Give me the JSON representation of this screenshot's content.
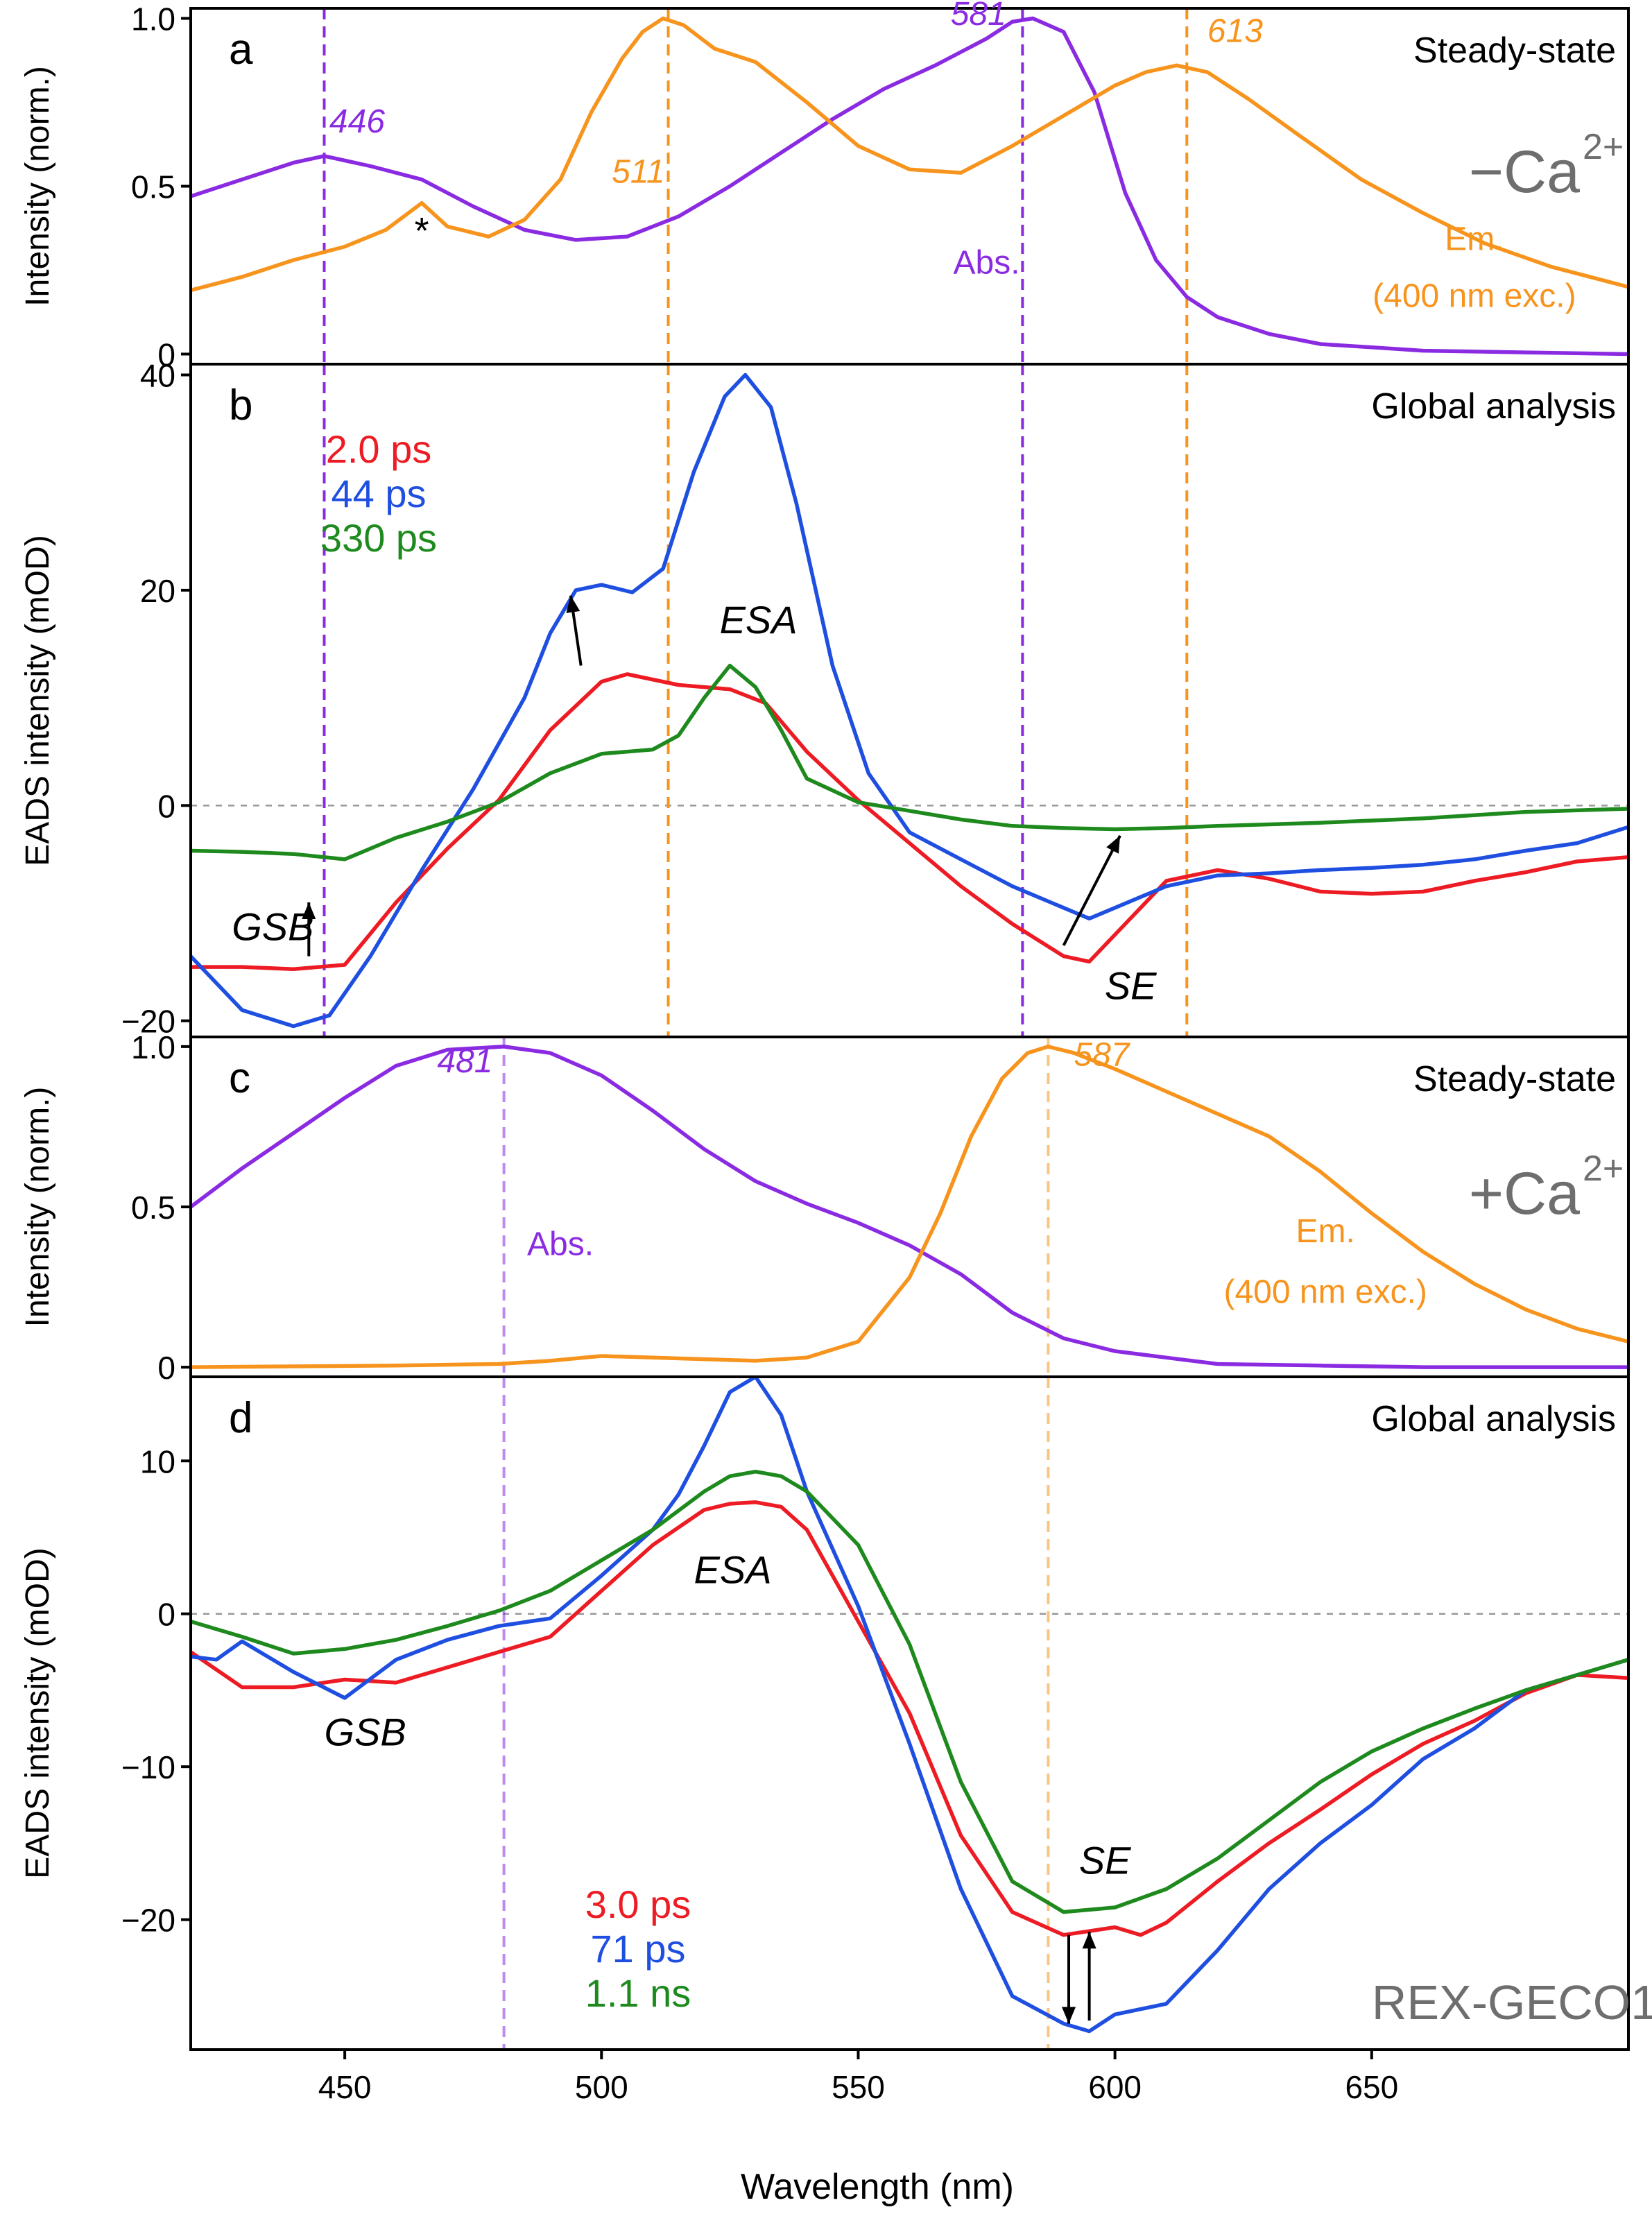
{
  "figure": {
    "xlabel": "Wavelength (nm)",
    "xlim": [
      420,
      700
    ],
    "x_ticks": [
      450,
      500,
      550,
      600,
      650
    ]
  },
  "colors": {
    "purple": "#8A2BE2",
    "orange": "#F7941D",
    "red": "#ED1C24",
    "blue": "#1F4FE0",
    "green": "#1E8A1E",
    "black": "#000000",
    "gray": "#6E6E6E"
  },
  "chart_data": [
    {
      "panel": "a",
      "type": "line",
      "title": "Steady-state",
      "condition": "−Ca",
      "condition_sup": "2+",
      "ylabel": "Intensity (norm.)",
      "ylim": [
        -0.03,
        1.03
      ],
      "y_ticks": [
        {
          "v": 1.0,
          "label": "1.0"
        },
        {
          "v": 0.5,
          "label": "0.5"
        },
        {
          "v": 0,
          "label": "0"
        }
      ],
      "vlines": [
        {
          "x": 446,
          "color": "purple"
        },
        {
          "x": 513,
          "color": "orange"
        },
        {
          "x": 582,
          "color": "purple"
        },
        {
          "x": 614,
          "color": "orange"
        }
      ],
      "peak_labels": [
        {
          "text": "446",
          "x": 447,
          "y": 0.66,
          "color": "purple"
        },
        {
          "text": "511",
          "x": 502,
          "y": 0.51,
          "color": "orange"
        },
        {
          "text": "581",
          "x": 568,
          "y": 0.98,
          "color": "purple"
        },
        {
          "text": "613",
          "x": 618,
          "y": 0.93,
          "color": "orange"
        }
      ],
      "labels": [
        {
          "text": "Abs.",
          "x": 575,
          "y": 0.24,
          "color": "purple"
        },
        {
          "text": "Em.",
          "x": 670,
          "y": 0.31,
          "color": "orange"
        },
        {
          "text": "(400 nm exc.)",
          "x": 670,
          "y": 0.14,
          "color": "orange"
        },
        {
          "text": "*",
          "x": 465,
          "y": 0.33,
          "color": "black"
        }
      ],
      "series": [
        {
          "name": "Abs.",
          "color": "purple",
          "x": [
            420,
            430,
            440,
            446,
            455,
            465,
            475,
            485,
            495,
            505,
            515,
            525,
            535,
            545,
            555,
            565,
            575,
            580,
            584,
            590,
            596,
            602,
            608,
            614,
            620,
            630,
            640,
            650,
            660,
            680,
            700
          ],
          "y": [
            0.47,
            0.52,
            0.57,
            0.59,
            0.56,
            0.52,
            0.44,
            0.37,
            0.34,
            0.35,
            0.41,
            0.5,
            0.6,
            0.7,
            0.79,
            0.86,
            0.94,
            0.99,
            1.0,
            0.96,
            0.78,
            0.48,
            0.28,
            0.17,
            0.11,
            0.06,
            0.03,
            0.02,
            0.01,
            0.005,
            0.0
          ]
        },
        {
          "name": "Em. (400 nm exc.)",
          "color": "orange",
          "x": [
            420,
            430,
            440,
            450,
            458,
            465,
            470,
            478,
            485,
            492,
            498,
            504,
            508,
            512,
            516,
            522,
            530,
            540,
            550,
            560,
            570,
            580,
            590,
            600,
            606,
            612,
            618,
            626,
            636,
            648,
            660,
            672,
            685,
            700
          ],
          "y": [
            0.19,
            0.23,
            0.28,
            0.32,
            0.37,
            0.45,
            0.38,
            0.35,
            0.4,
            0.52,
            0.72,
            0.88,
            0.96,
            1.0,
            0.98,
            0.91,
            0.87,
            0.75,
            0.62,
            0.55,
            0.54,
            0.62,
            0.71,
            0.8,
            0.84,
            0.86,
            0.84,
            0.76,
            0.65,
            0.52,
            0.42,
            0.33,
            0.26,
            0.2
          ]
        }
      ]
    },
    {
      "panel": "b",
      "type": "line",
      "title": "Global analysis",
      "ylabel": "EADS intensity (mOD)",
      "ylim": [
        -21.5,
        41
      ],
      "y_ticks": [
        {
          "v": 40,
          "label": "40"
        },
        {
          "v": 20,
          "label": "20"
        },
        {
          "v": 0,
          "label": "0"
        },
        {
          "v": -20,
          "label": "−20"
        }
      ],
      "vlines": [
        {
          "x": 446,
          "color": "purple"
        },
        {
          "x": 513,
          "color": "orange"
        },
        {
          "x": 582,
          "color": "purple"
        },
        {
          "x": 614,
          "color": "orange"
        }
      ],
      "legend": [
        {
          "text": "2.0 ps",
          "color": "red"
        },
        {
          "text": "44 ps",
          "color": "blue"
        },
        {
          "text": "330 ps",
          "color": "green"
        }
      ],
      "labels": [
        {
          "text": "ESA",
          "x": 523,
          "y": 16
        },
        {
          "text": "GSB",
          "x": 428,
          "y": -12.5
        },
        {
          "text": "SE",
          "x": 598,
          "y": -18
        }
      ],
      "arrows": [
        {
          "x1": 496,
          "y1": 13,
          "x2": 494,
          "y2": 19.5
        },
        {
          "x1": 590,
          "y1": -13,
          "x2": 601,
          "y2": -2.8
        },
        {
          "x1": 443,
          "y1": -14,
          "x2": 443,
          "y2": -9
        }
      ],
      "series": [
        {
          "name": "2.0 ps",
          "color": "red",
          "x": [
            420,
            430,
            440,
            450,
            460,
            470,
            480,
            490,
            500,
            505,
            515,
            525,
            532,
            540,
            550,
            560,
            570,
            580,
            590,
            595,
            602,
            610,
            620,
            630,
            640,
            650,
            660,
            670,
            680,
            690,
            700
          ],
          "y": [
            -15,
            -15,
            -15.2,
            -14.8,
            -9,
            -4,
            0.5,
            7,
            11.5,
            12.2,
            11.2,
            10.8,
            9.5,
            5,
            0.5,
            -3.5,
            -7.5,
            -11,
            -14,
            -14.5,
            -11,
            -7,
            -6,
            -6.8,
            -8,
            -8.2,
            -8,
            -7,
            -6.2,
            -5.2,
            -4.8
          ]
        },
        {
          "name": "44 ps",
          "color": "blue",
          "x": [
            420,
            430,
            440,
            447,
            455,
            465,
            475,
            485,
            490,
            495,
            500,
            506,
            512,
            518,
            524,
            528,
            533,
            538,
            545,
            552,
            560,
            570,
            580,
            590,
            595,
            600,
            610,
            620,
            630,
            640,
            650,
            660,
            670,
            680,
            690,
            700
          ],
          "y": [
            -14,
            -19,
            -20.5,
            -19.5,
            -14,
            -6,
            1.5,
            10,
            16,
            20,
            20.5,
            19.8,
            22,
            31,
            38,
            40,
            37,
            28,
            13,
            3,
            -2.5,
            -5,
            -7.5,
            -9.5,
            -10.5,
            -9.5,
            -7.5,
            -6.5,
            -6.3,
            -6,
            -5.8,
            -5.5,
            -5,
            -4.2,
            -3.5,
            -2
          ]
        },
        {
          "name": "330 ps",
          "color": "green",
          "x": [
            420,
            430,
            440,
            450,
            460,
            470,
            480,
            490,
            500,
            510,
            515,
            520,
            525,
            530,
            535,
            540,
            550,
            560,
            570,
            580,
            590,
            600,
            610,
            620,
            640,
            660,
            680,
            700
          ],
          "y": [
            -4.2,
            -4.3,
            -4.5,
            -5,
            -3,
            -1.5,
            0.3,
            3,
            4.8,
            5.2,
            6.5,
            10,
            13,
            11,
            7,
            2.5,
            0.3,
            -0.5,
            -1.3,
            -1.9,
            -2.1,
            -2.2,
            -2.1,
            -1.9,
            -1.6,
            -1.2,
            -0.6,
            -0.3
          ]
        }
      ]
    },
    {
      "panel": "c",
      "type": "line",
      "title": "Steady-state",
      "condition": "+Ca",
      "condition_sup": "2+",
      "ylabel": "Intensity (norm.)",
      "ylim": [
        -0.03,
        1.03
      ],
      "y_ticks": [
        {
          "v": 1.0,
          "label": "1.0"
        },
        {
          "v": 0.5,
          "label": "0.5"
        },
        {
          "v": 0,
          "label": "0"
        }
      ],
      "vlines": [
        {
          "x": 481,
          "color": "purple"
        },
        {
          "x": 587,
          "color": "orange"
        }
      ],
      "peak_labels": [
        {
          "text": "481",
          "x": 468,
          "y": 0.92,
          "color": "purple"
        },
        {
          "text": "587",
          "x": 592,
          "y": 0.94,
          "color": "orange"
        }
      ],
      "labels": [
        {
          "text": "Abs.",
          "x": 492,
          "y": 0.35,
          "color": "purple"
        },
        {
          "text": "Em.",
          "x": 641,
          "y": 0.39,
          "color": "orange"
        },
        {
          "text": "(400 nm exc.)",
          "x": 641,
          "y": 0.2,
          "color": "orange"
        }
      ],
      "series": [
        {
          "name": "Abs.",
          "color": "purple",
          "x": [
            420,
            430,
            440,
            450,
            460,
            470,
            481,
            490,
            500,
            510,
            520,
            530,
            540,
            550,
            560,
            570,
            580,
            590,
            600,
            610,
            620,
            640,
            660,
            700
          ],
          "y": [
            0.5,
            0.62,
            0.73,
            0.84,
            0.94,
            0.99,
            1.0,
            0.98,
            0.91,
            0.8,
            0.68,
            0.58,
            0.51,
            0.45,
            0.38,
            0.29,
            0.17,
            0.09,
            0.05,
            0.03,
            0.01,
            0.005,
            0.0,
            0.0
          ]
        },
        {
          "name": "Em. (400 nm exc.)",
          "color": "orange",
          "x": [
            420,
            460,
            480,
            490,
            500,
            510,
            520,
            530,
            540,
            550,
            560,
            566,
            572,
            578,
            583,
            587,
            592,
            600,
            610,
            620,
            630,
            640,
            650,
            660,
            670,
            680,
            690,
            700
          ],
          "y": [
            0.0,
            0.005,
            0.01,
            0.02,
            0.035,
            0.03,
            0.025,
            0.02,
            0.03,
            0.08,
            0.28,
            0.48,
            0.72,
            0.9,
            0.98,
            1.0,
            0.98,
            0.93,
            0.86,
            0.79,
            0.72,
            0.61,
            0.48,
            0.36,
            0.26,
            0.18,
            0.12,
            0.08
          ]
        }
      ]
    },
    {
      "panel": "d",
      "type": "line",
      "title": "Global analysis",
      "ylabel": "EADS intensity (mOD)",
      "ylim": [
        -28.5,
        15.5
      ],
      "y_ticks": [
        {
          "v": 10,
          "label": "10"
        },
        {
          "v": 0,
          "label": "0"
        },
        {
          "v": -10,
          "label": "−10"
        },
        {
          "v": -20,
          "label": "−20"
        }
      ],
      "vlines": [
        {
          "x": 481,
          "color": "purple"
        },
        {
          "x": 587,
          "color": "orange"
        }
      ],
      "legend": [
        {
          "text": "3.0 ps",
          "color": "red"
        },
        {
          "text": "71 ps",
          "color": "blue"
        },
        {
          "text": "1.1 ns",
          "color": "green"
        }
      ],
      "labels": [
        {
          "text": "ESA",
          "x": 518,
          "y": 2.0
        },
        {
          "text": "GSB",
          "x": 446,
          "y": -8.6
        },
        {
          "text": "SE",
          "x": 593,
          "y": -17.0
        },
        {
          "text": "REX-GECO1",
          "x": 650,
          "y": -26.5,
          "color": "gray"
        }
      ],
      "arrows": [
        {
          "x1": 591,
          "y1": -21,
          "x2": 591,
          "y2": -26.8
        },
        {
          "x1": 595,
          "y1": -26.6,
          "x2": 595,
          "y2": -20.8
        }
      ],
      "series": [
        {
          "name": "3.0 ps",
          "color": "red",
          "x": [
            420,
            430,
            440,
            450,
            460,
            470,
            480,
            490,
            500,
            510,
            520,
            525,
            530,
            535,
            540,
            550,
            560,
            570,
            580,
            590,
            600,
            605,
            610,
            620,
            630,
            640,
            650,
            660,
            670,
            680,
            690,
            700
          ],
          "y": [
            -2.5,
            -4.8,
            -4.8,
            -4.3,
            -4.5,
            -3.5,
            -2.5,
            -1.5,
            1.5,
            4.5,
            6.8,
            7.2,
            7.3,
            7,
            5.5,
            -0.5,
            -6.5,
            -14.5,
            -19.5,
            -21,
            -20.5,
            -21,
            -20.2,
            -17.5,
            -15,
            -12.8,
            -10.5,
            -8.5,
            -7,
            -5.2,
            -4,
            -4.2
          ]
        },
        {
          "name": "71 ps",
          "color": "blue",
          "x": [
            420,
            425,
            430,
            440,
            450,
            460,
            470,
            480,
            490,
            500,
            510,
            515,
            520,
            525,
            530,
            535,
            540,
            550,
            560,
            570,
            580,
            590,
            595,
            600,
            610,
            620,
            630,
            640,
            650,
            660,
            670,
            680,
            690,
            700
          ],
          "y": [
            -2.8,
            -3,
            -1.8,
            -3.8,
            -5.5,
            -3,
            -1.7,
            -0.8,
            -0.3,
            2.5,
            5.5,
            7.8,
            11,
            14.5,
            15.5,
            13,
            8,
            0.5,
            -8.5,
            -18,
            -25,
            -26.8,
            -27.3,
            -26.2,
            -25.5,
            -22,
            -18,
            -15,
            -12.5,
            -9.5,
            -7.5,
            -5,
            -4,
            -3
          ]
        },
        {
          "name": "1.1 ns",
          "color": "green",
          "x": [
            420,
            430,
            440,
            450,
            460,
            470,
            480,
            490,
            500,
            510,
            520,
            525,
            530,
            535,
            540,
            550,
            560,
            570,
            580,
            590,
            600,
            610,
            620,
            630,
            640,
            650,
            660,
            670,
            680,
            690,
            700
          ],
          "y": [
            -0.5,
            -1.5,
            -2.6,
            -2.3,
            -1.7,
            -0.8,
            0.2,
            1.5,
            3.5,
            5.5,
            8,
            9,
            9.3,
            9,
            8,
            4.5,
            -2,
            -11,
            -17.5,
            -19.5,
            -19.2,
            -18,
            -16,
            -13.5,
            -11,
            -9,
            -7.5,
            -6.2,
            -5,
            -4,
            -3
          ]
        }
      ]
    }
  ]
}
